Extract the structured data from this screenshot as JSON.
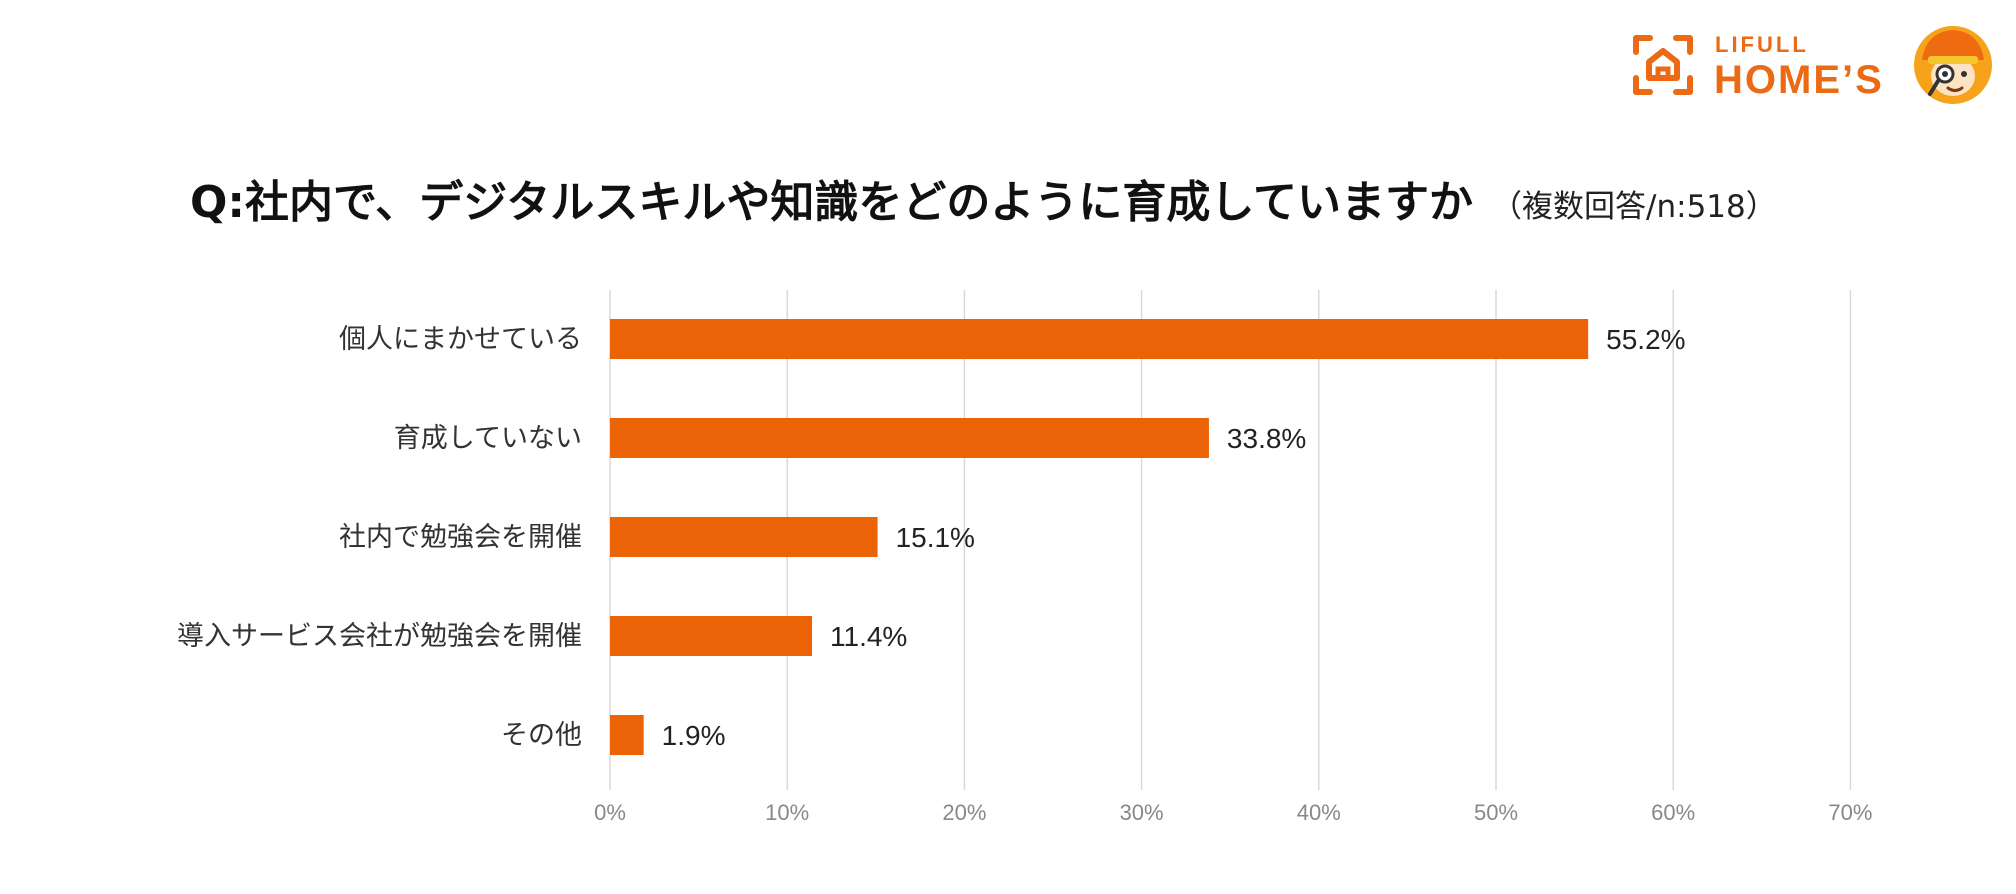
{
  "brand": {
    "name_small": "LIFULL",
    "name_large": "HOME’S",
    "color": "#ec6a14"
  },
  "header": {
    "title": "Q:社内で、デジタルスキルや知識をどのように育成していますか",
    "subtitle": "（複数回答/n:518）"
  },
  "chart_data": {
    "type": "bar",
    "orientation": "horizontal",
    "title": "Q:社内で、デジタルスキルや知識をどのように育成していますか",
    "subtitle": "（複数回答/n:518）",
    "categories": [
      "個人にまかせている",
      "育成していない",
      "社内で勉強会を開催",
      "導入サービス会社が勉強会を開催",
      "その他"
    ],
    "values": [
      55.2,
      33.8,
      15.1,
      11.4,
      1.9
    ],
    "value_labels": [
      "55.2%",
      "33.8%",
      "15.1%",
      "11.4%",
      "1.9%"
    ],
    "xlim": [
      0,
      70
    ],
    "x_ticks": [
      0,
      10,
      20,
      30,
      40,
      50,
      60,
      70
    ],
    "x_tick_labels": [
      "0%",
      "10%",
      "20%",
      "30%",
      "40%",
      "50%",
      "60%",
      "70%"
    ],
    "xlabel": "",
    "ylabel": "",
    "grid": true,
    "bar_color": "#ec6206",
    "grid_color": "#d9d9d9"
  }
}
